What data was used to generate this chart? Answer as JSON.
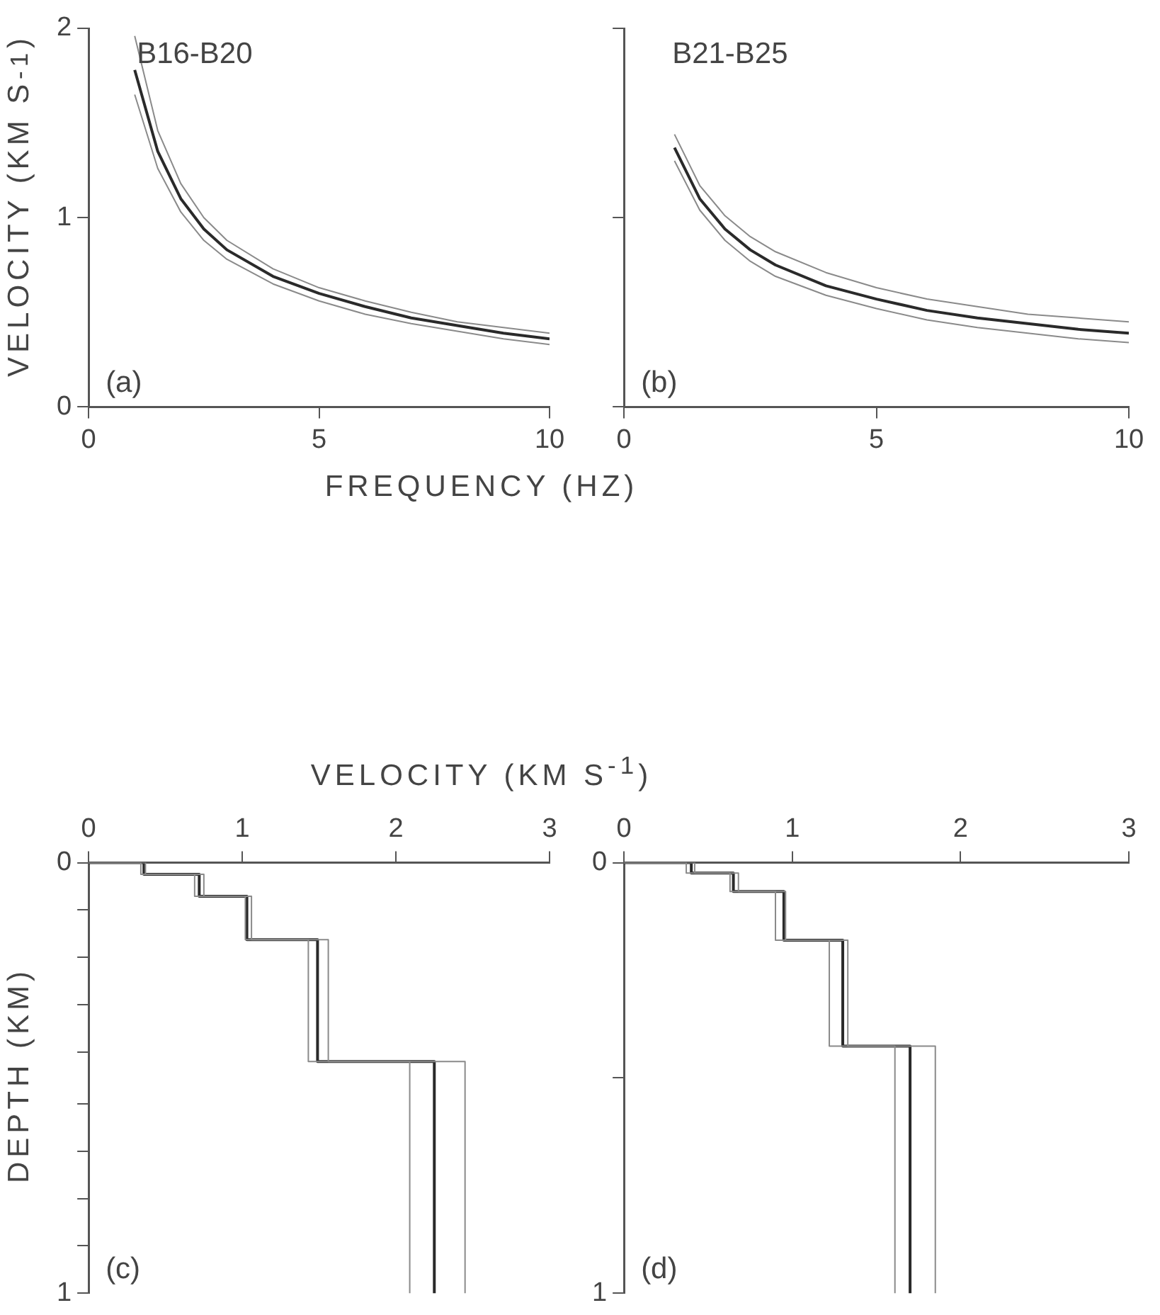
{
  "chart_data": [
    {
      "type": "line",
      "ylabel": "VELOCITY (KM S$^{-1}$)",
      "xlabel": "FREQUENCY (HZ)",
      "annotations": [
        "B16-B20",
        "(a)"
      ],
      "x": [
        1,
        1.5,
        2,
        2.5,
        3,
        4,
        5,
        6,
        7,
        8,
        9,
        10
      ],
      "xlim": [
        0,
        10
      ],
      "xticks": [
        0,
        5,
        10
      ],
      "ylim": [
        0,
        2
      ],
      "yticks": [
        0,
        1,
        2
      ],
      "grid": false,
      "legend": false,
      "marker": "none",
      "series": [
        {
          "color": "#8a8a8a",
          "values": [
            1.96,
            1.46,
            1.18,
            1.0,
            0.88,
            0.73,
            0.63,
            0.56,
            0.5,
            0.45,
            0.42,
            0.39
          ]
        },
        {
          "color": "#8a8a8a",
          "values": [
            1.65,
            1.26,
            1.03,
            0.88,
            0.78,
            0.65,
            0.56,
            0.49,
            0.44,
            0.4,
            0.36,
            0.33
          ]
        },
        {
          "color": "#2a2a2a",
          "values": [
            1.78,
            1.35,
            1.1,
            0.94,
            0.83,
            0.69,
            0.6,
            0.53,
            0.47,
            0.43,
            0.39,
            0.36
          ]
        }
      ]
    },
    {
      "type": "line",
      "annotations": [
        "B21-B25",
        "(b)"
      ],
      "x": [
        1,
        1.5,
        2,
        2.5,
        3,
        4,
        5,
        6,
        7,
        8,
        9,
        10
      ],
      "xlim": [
        0,
        10
      ],
      "xticks": [
        0,
        5,
        10
      ],
      "ylim": [
        0,
        2
      ],
      "yticks": [
        0,
        1,
        2
      ],
      "tick_labels": "x",
      "grid": false,
      "legend": false,
      "marker": "none",
      "series": [
        {
          "color": "#8a8a8a",
          "values": [
            1.44,
            1.17,
            1.01,
            0.9,
            0.82,
            0.71,
            0.63,
            0.57,
            0.53,
            0.49,
            0.47,
            0.45
          ]
        },
        {
          "color": "#8a8a8a",
          "values": [
            1.3,
            1.04,
            0.88,
            0.77,
            0.69,
            0.59,
            0.52,
            0.46,
            0.42,
            0.39,
            0.36,
            0.34
          ]
        },
        {
          "color": "#2a2a2a",
          "values": [
            1.37,
            1.1,
            0.94,
            0.83,
            0.75,
            0.64,
            0.57,
            0.51,
            0.47,
            0.44,
            0.41,
            0.39
          ]
        }
      ]
    },
    {
      "type": "line",
      "xlabel": "VELOCITY (KM S$^{-1}$)",
      "ylabel": "DEPTH (KM)",
      "annotations": [
        "(c)"
      ],
      "xlim": [
        0,
        3
      ],
      "xticks": [
        0,
        1,
        2,
        3
      ],
      "ylim": [
        1,
        0
      ],
      "yticks": [
        0,
        {
          "value": 0.11,
          "label": null
        },
        {
          "value": 0.22,
          "label": null
        },
        {
          "value": 0.33,
          "label": null
        },
        {
          "value": 0.44,
          "label": null
        },
        {
          "value": 0.56,
          "label": null
        },
        {
          "value": 0.67,
          "label": null
        },
        {
          "value": 0.78,
          "label": null
        },
        {
          "value": 0.89,
          "label": null
        },
        1
      ],
      "grid": false,
      "legend": false,
      "marker": "none",
      "series": [
        {
          "color": "#8a8a8a",
          "x": [
            0,
            0.37,
            0.37,
            0.75,
            0.75,
            1.06,
            1.06,
            1.56,
            1.56,
            2.45,
            2.45
          ],
          "values": [
            0,
            0,
            0.027,
            0.027,
            0.078,
            0.078,
            0.179,
            0.179,
            0.462,
            0.462,
            1
          ]
        },
        {
          "color": "#8a8a8a",
          "x": [
            0,
            0.34,
            0.34,
            0.69,
            0.69,
            1.02,
            1.02,
            1.43,
            1.43,
            2.09,
            2.09
          ],
          "values": [
            0,
            0,
            0.027,
            0.027,
            0.078,
            0.078,
            0.179,
            0.179,
            0.462,
            0.462,
            1
          ]
        },
        {
          "color": "#2a2a2a",
          "x": [
            0,
            0.36,
            0.36,
            0.72,
            0.72,
            1.03,
            1.03,
            1.49,
            1.49,
            2.25,
            2.25
          ],
          "values": [
            0,
            0,
            0.027,
            0.027,
            0.078,
            0.078,
            0.179,
            0.179,
            0.462,
            0.462,
            1
          ]
        }
      ]
    },
    {
      "type": "line",
      "annotations": [
        "(d)"
      ],
      "xlim": [
        0,
        3
      ],
      "xticks": [
        0,
        1,
        2,
        3
      ],
      "ylim": [
        1,
        0
      ],
      "yticks": [
        0,
        {
          "value": 0.5,
          "label": null
        },
        1
      ],
      "grid": false,
      "legend": false,
      "marker": "none",
      "series": [
        {
          "color": "#8a8a8a",
          "x": [
            0,
            0.42,
            0.42,
            0.68,
            0.68,
            0.96,
            0.96,
            1.33,
            1.33,
            1.85,
            1.85
          ],
          "values": [
            0,
            0,
            0.024,
            0.024,
            0.067,
            0.067,
            0.18,
            0.18,
            0.426,
            0.426,
            1
          ]
        },
        {
          "color": "#8a8a8a",
          "x": [
            0,
            0.37,
            0.37,
            0.63,
            0.63,
            0.9,
            0.9,
            1.22,
            1.22,
            1.61,
            1.61
          ],
          "values": [
            0,
            0,
            0.024,
            0.024,
            0.067,
            0.067,
            0.18,
            0.18,
            0.426,
            0.426,
            1
          ]
        },
        {
          "color": "#2a2a2a",
          "x": [
            0,
            0.4,
            0.4,
            0.65,
            0.65,
            0.95,
            0.95,
            1.3,
            1.3,
            1.7,
            1.7
          ],
          "values": [
            0,
            0,
            0.024,
            0.024,
            0.067,
            0.067,
            0.18,
            0.18,
            0.426,
            0.426,
            1
          ]
        }
      ]
    }
  ]
}
